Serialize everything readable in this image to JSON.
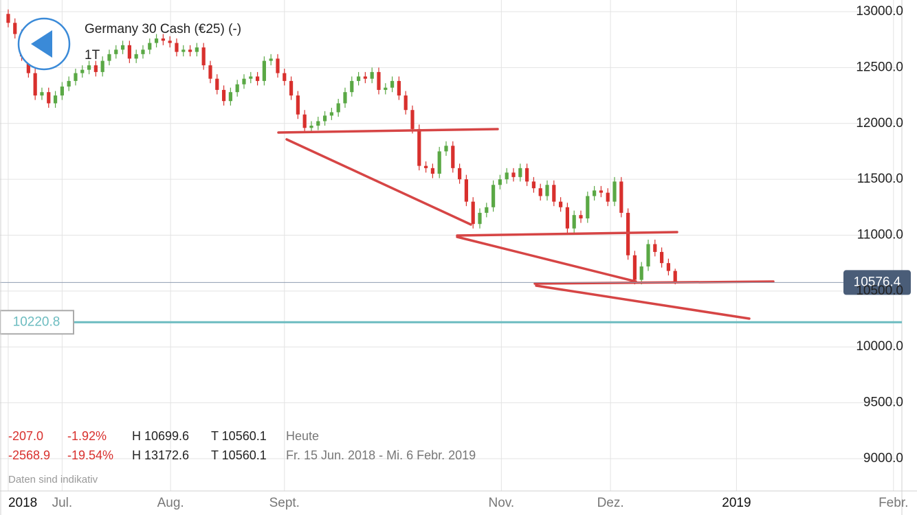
{
  "chart_data": {
    "type": "candlestick",
    "title": "Germany 30 Cash (€25) (-)",
    "subtitle": "1T",
    "note": "Daten sind indikativ",
    "up_color": "#5aa845",
    "down_color": "#d8302d",
    "ylim": [
      8711,
      13104.5
    ],
    "xlim": [
      -1.22,
      132.65
    ],
    "yticks": [
      {
        "value": 9000,
        "label": "9000.0"
      },
      {
        "value": 9500,
        "label": "9500.0"
      },
      {
        "value": 10000,
        "label": "10000.0"
      },
      {
        "value": 10500,
        "label": "10500.0"
      },
      {
        "value": 11000,
        "label": "11000.0"
      },
      {
        "value": 11500,
        "label": "11500.0"
      },
      {
        "value": 12000,
        "label": "12000.0"
      },
      {
        "value": 12500,
        "label": "12500.0"
      },
      {
        "value": 13000,
        "label": "13000.0"
      }
    ],
    "xticks": [
      {
        "value": 0,
        "label": "2018"
      },
      {
        "value": 8,
        "label": "Jul."
      },
      {
        "value": 24.1,
        "label": "Aug."
      },
      {
        "value": 41,
        "label": "Sept."
      },
      {
        "value": 73.2,
        "label": "Nov."
      },
      {
        "value": 89.4,
        "label": "Dez."
      },
      {
        "value": 108.1,
        "label": "2019"
      },
      {
        "value": 131.4,
        "label": "Febr."
      }
    ],
    "open": [
      12980,
      12900,
      12800,
      12600,
      12450,
      12250,
      12280,
      12180,
      12250,
      12330,
      12380,
      12450,
      12480,
      12520,
      12460,
      12560,
      12620,
      12660,
      12700,
      12580,
      12620,
      12660,
      12720,
      12760,
      12740,
      12720,
      12640,
      12660,
      12640,
      12680,
      12520,
      12400,
      12300,
      12200,
      12280,
      12350,
      12400,
      12420,
      12380,
      12560,
      12580,
      12450,
      12380,
      12250,
      12080,
      11960,
      11980,
      12020,
      12070,
      12100,
      12180,
      12280,
      12380,
      12420,
      12400,
      12460,
      12300,
      12320,
      12380,
      12250,
      12120,
      11950,
      11620,
      11600,
      11550,
      11750,
      11800,
      11600,
      11500,
      11300,
      11100,
      11200,
      11250,
      11450,
      11500,
      11560,
      11520,
      11600,
      11480,
      11420,
      11350,
      11450,
      11300,
      11250,
      11060,
      11180,
      11150,
      11350,
      11400,
      11380,
      11300,
      11480,
      11200,
      10820,
      10600,
      10720,
      10920,
      10850,
      10750,
      10680
    ],
    "high": [
      13020,
      12940,
      12840,
      12640,
      12490,
      12320,
      12320,
      12290,
      12370,
      12420,
      12490,
      12520,
      12560,
      12560,
      12600,
      12660,
      12700,
      12740,
      12740,
      12660,
      12700,
      12760,
      12800,
      12800,
      12780,
      12760,
      12700,
      12700,
      12720,
      12720,
      12560,
      12440,
      12340,
      12320,
      12390,
      12440,
      12460,
      12460,
      12600,
      12620,
      12620,
      12490,
      12420,
      12290,
      12120,
      12020,
      12060,
      12110,
      12140,
      12220,
      12320,
      12420,
      12460,
      12460,
      12500,
      12500,
      12360,
      12420,
      12420,
      12290,
      12160,
      11990,
      11660,
      11640,
      11790,
      11840,
      11840,
      11640,
      11540,
      11340,
      11240,
      11290,
      11490,
      11540,
      11600,
      11600,
      11640,
      11640,
      11520,
      11460,
      11490,
      11490,
      11340,
      11290,
      11220,
      11220,
      11390,
      11440,
      11440,
      11420,
      11520,
      11520,
      11240,
      10860,
      10760,
      10960,
      10960,
      10890,
      10790,
      10700
    ],
    "low": [
      12860,
      12760,
      12560,
      12410,
      12210,
      12210,
      12140,
      12140,
      12210,
      12290,
      12340,
      12410,
      12440,
      12420,
      12420,
      12520,
      12580,
      12620,
      12540,
      12540,
      12580,
      12620,
      12680,
      12700,
      12680,
      12600,
      12600,
      12600,
      12600,
      12480,
      12360,
      12260,
      12160,
      12160,
      12240,
      12310,
      12360,
      12340,
      12340,
      12520,
      12410,
      12340,
      12210,
      12040,
      11920,
      11920,
      11940,
      11980,
      12030,
      12060,
      12140,
      12240,
      12340,
      12360,
      12360,
      12260,
      12260,
      12280,
      12210,
      12080,
      11910,
      11580,
      11560,
      11510,
      11510,
      11710,
      11560,
      11460,
      11260,
      11060,
      11060,
      11160,
      11210,
      11410,
      11460,
      11480,
      11480,
      11440,
      11380,
      11310,
      11310,
      11260,
      11210,
      11020,
      11020,
      11110,
      11110,
      11310,
      11340,
      11260,
      11260,
      11160,
      10780,
      10560,
      10560,
      10680,
      10810,
      10710,
      10640,
      10560
    ],
    "close": [
      12900,
      12800,
      12600,
      12450,
      12250,
      12280,
      12180,
      12250,
      12330,
      12380,
      12450,
      12480,
      12520,
      12460,
      12560,
      12620,
      12660,
      12700,
      12580,
      12620,
      12660,
      12720,
      12760,
      12740,
      12720,
      12640,
      12660,
      12640,
      12680,
      12520,
      12400,
      12300,
      12200,
      12280,
      12350,
      12400,
      12420,
      12380,
      12560,
      12580,
      12450,
      12380,
      12250,
      12080,
      11960,
      11980,
      12020,
      12070,
      12100,
      12180,
      12280,
      12380,
      12420,
      12400,
      12460,
      12300,
      12320,
      12380,
      12250,
      12120,
      11950,
      11620,
      11600,
      11550,
      11750,
      11800,
      11600,
      11500,
      11300,
      11100,
      11200,
      11250,
      11450,
      11500,
      11560,
      11520,
      11600,
      11480,
      11420,
      11350,
      11450,
      11300,
      11250,
      11060,
      11180,
      11150,
      11350,
      11400,
      11380,
      11300,
      11480,
      11200,
      10820,
      10600,
      10720,
      10920,
      10850,
      10750,
      10680,
      10576.4
    ],
    "price_lines": [
      {
        "value": 10576.4,
        "color": "#8e9bb0"
      },
      {
        "value": 10220.8,
        "color": "#6cbcc0"
      }
    ],
    "stats": [
      [
        "-207.0",
        "-1.92%",
        "H 10699.6",
        "T 10560.1",
        "Heute"
      ],
      [
        "-2568.9",
        "-19.54%",
        "H 13172.6",
        "T 10560.1",
        "Fr. 15 Jun. 2018 - Mi. 6 Febr. 2019"
      ]
    ]
  }
}
